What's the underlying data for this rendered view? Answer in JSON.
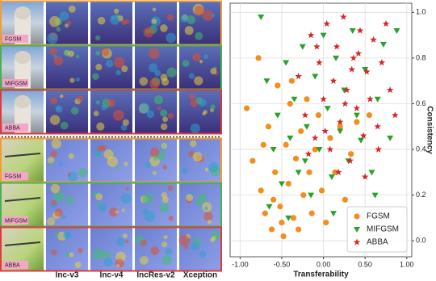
{
  "image_grid": {
    "columns": [
      "Inc-v3",
      "Inc-v4",
      "IncRes-v2",
      "Xception"
    ],
    "rows": [
      {
        "label": "FGSM",
        "color": "#f39c34"
      },
      {
        "label": "MIFGSM",
        "color": "#4caf50"
      },
      {
        "label": "ABBA",
        "color": "#e03a3a"
      },
      {
        "label": "FGSM",
        "color": "#f39c34"
      },
      {
        "label": "MIFGSM",
        "color": "#4caf50"
      },
      {
        "label": "ABBA",
        "color": "#e03a3a"
      }
    ]
  },
  "chart_data": {
    "type": "scatter",
    "x_label": "Transferability",
    "y_label": "Consistency",
    "xlim": [
      -1.12,
      1.06
    ],
    "ylim": [
      -0.07,
      1.04
    ],
    "xticks": [
      {
        "value": -1,
        "label": "-1.00"
      },
      {
        "value": -0.5,
        "label": "-0.50"
      },
      {
        "value": 0,
        "label": "0.00"
      },
      {
        "value": 0.5,
        "label": "0.50"
      },
      {
        "value": 1,
        "label": "1.00"
      }
    ],
    "yticks": [
      {
        "value": 0,
        "label": "0.0"
      },
      0.2,
      0.4,
      0.6,
      0.8,
      {
        "value": 1,
        "label": "1.0"
      }
    ],
    "grid": true,
    "legend": "lower right",
    "series": [
      {
        "name": "FGSM",
        "color": "#f28e1c",
        "marker": "circle",
        "x": [
          -0.92,
          -0.85,
          -0.78,
          -0.75,
          -0.7,
          -0.66,
          -0.62,
          -0.58,
          -0.55,
          -0.52,
          -0.48,
          -0.45,
          -0.42,
          -0.4,
          -0.36,
          -0.33,
          -0.3,
          -0.27,
          -0.24,
          -0.2,
          -0.17,
          -0.14,
          -0.1,
          -0.06,
          -0.02,
          0.03,
          0.08,
          0.14,
          0.2,
          0.26,
          0.33,
          0.4,
          0.55,
          -0.72,
          -0.6,
          -0.5,
          -0.38
        ],
        "values": [
          0.58,
          0.35,
          0.8,
          0.22,
          0.12,
          0.5,
          0.05,
          0.3,
          0.68,
          0.15,
          0.02,
          0.42,
          0.25,
          0.6,
          0.1,
          0.36,
          0.05,
          0.48,
          0.2,
          0.62,
          0.3,
          0.12,
          0.4,
          0.55,
          0.22,
          0.08,
          0.45,
          0.3,
          0.5,
          0.18,
          0.38,
          0.52,
          0.55,
          0.42,
          0.18,
          0.08,
          0.7
        ]
      },
      {
        "name": "MIFGSM",
        "color": "#2ca02c",
        "marker": "triangle-down",
        "x": [
          -0.75,
          -0.68,
          -0.6,
          -0.55,
          -0.5,
          -0.45,
          -0.4,
          -0.35,
          -0.3,
          -0.25,
          -0.2,
          -0.15,
          -0.1,
          -0.05,
          0.0,
          0.05,
          0.1,
          0.15,
          0.2,
          0.25,
          0.3,
          0.35,
          0.4,
          0.45,
          0.5,
          0.58,
          0.65,
          0.72,
          0.8,
          0.88,
          -0.65,
          -0.42,
          -0.22,
          0.12,
          0.62
        ],
        "values": [
          0.98,
          0.7,
          0.4,
          0.55,
          0.25,
          0.78,
          0.45,
          0.62,
          0.3,
          0.85,
          0.5,
          0.2,
          0.72,
          0.4,
          0.9,
          0.58,
          0.28,
          0.8,
          0.48,
          0.66,
          0.35,
          0.92,
          0.55,
          0.44,
          0.75,
          0.3,
          0.62,
          0.86,
          0.45,
          0.92,
          0.15,
          0.1,
          0.35,
          0.12,
          0.2
        ]
      },
      {
        "name": "ABBA",
        "color": "#d62728",
        "marker": "star",
        "x": [
          -0.3,
          -0.22,
          -0.15,
          -0.1,
          -0.05,
          0.0,
          0.04,
          0.08,
          0.12,
          0.16,
          0.2,
          0.24,
          0.28,
          0.32,
          0.36,
          0.4,
          0.44,
          0.48,
          0.52,
          0.56,
          0.6,
          0.65,
          0.7,
          0.75,
          0.8,
          0.86,
          -0.18,
          0.02,
          0.18,
          0.34,
          0.5,
          0.66,
          -0.08,
          0.26,
          0.42
        ],
        "values": [
          0.72,
          0.55,
          0.9,
          0.45,
          0.78,
          0.62,
          0.95,
          0.4,
          0.7,
          0.85,
          0.52,
          0.98,
          0.66,
          0.35,
          0.8,
          0.58,
          0.92,
          0.46,
          0.74,
          0.62,
          0.88,
          0.5,
          0.78,
          0.95,
          0.66,
          0.55,
          0.38,
          0.48,
          0.3,
          0.75,
          0.28,
          0.4,
          0.85,
          0.6,
          0.82
        ]
      }
    ]
  }
}
